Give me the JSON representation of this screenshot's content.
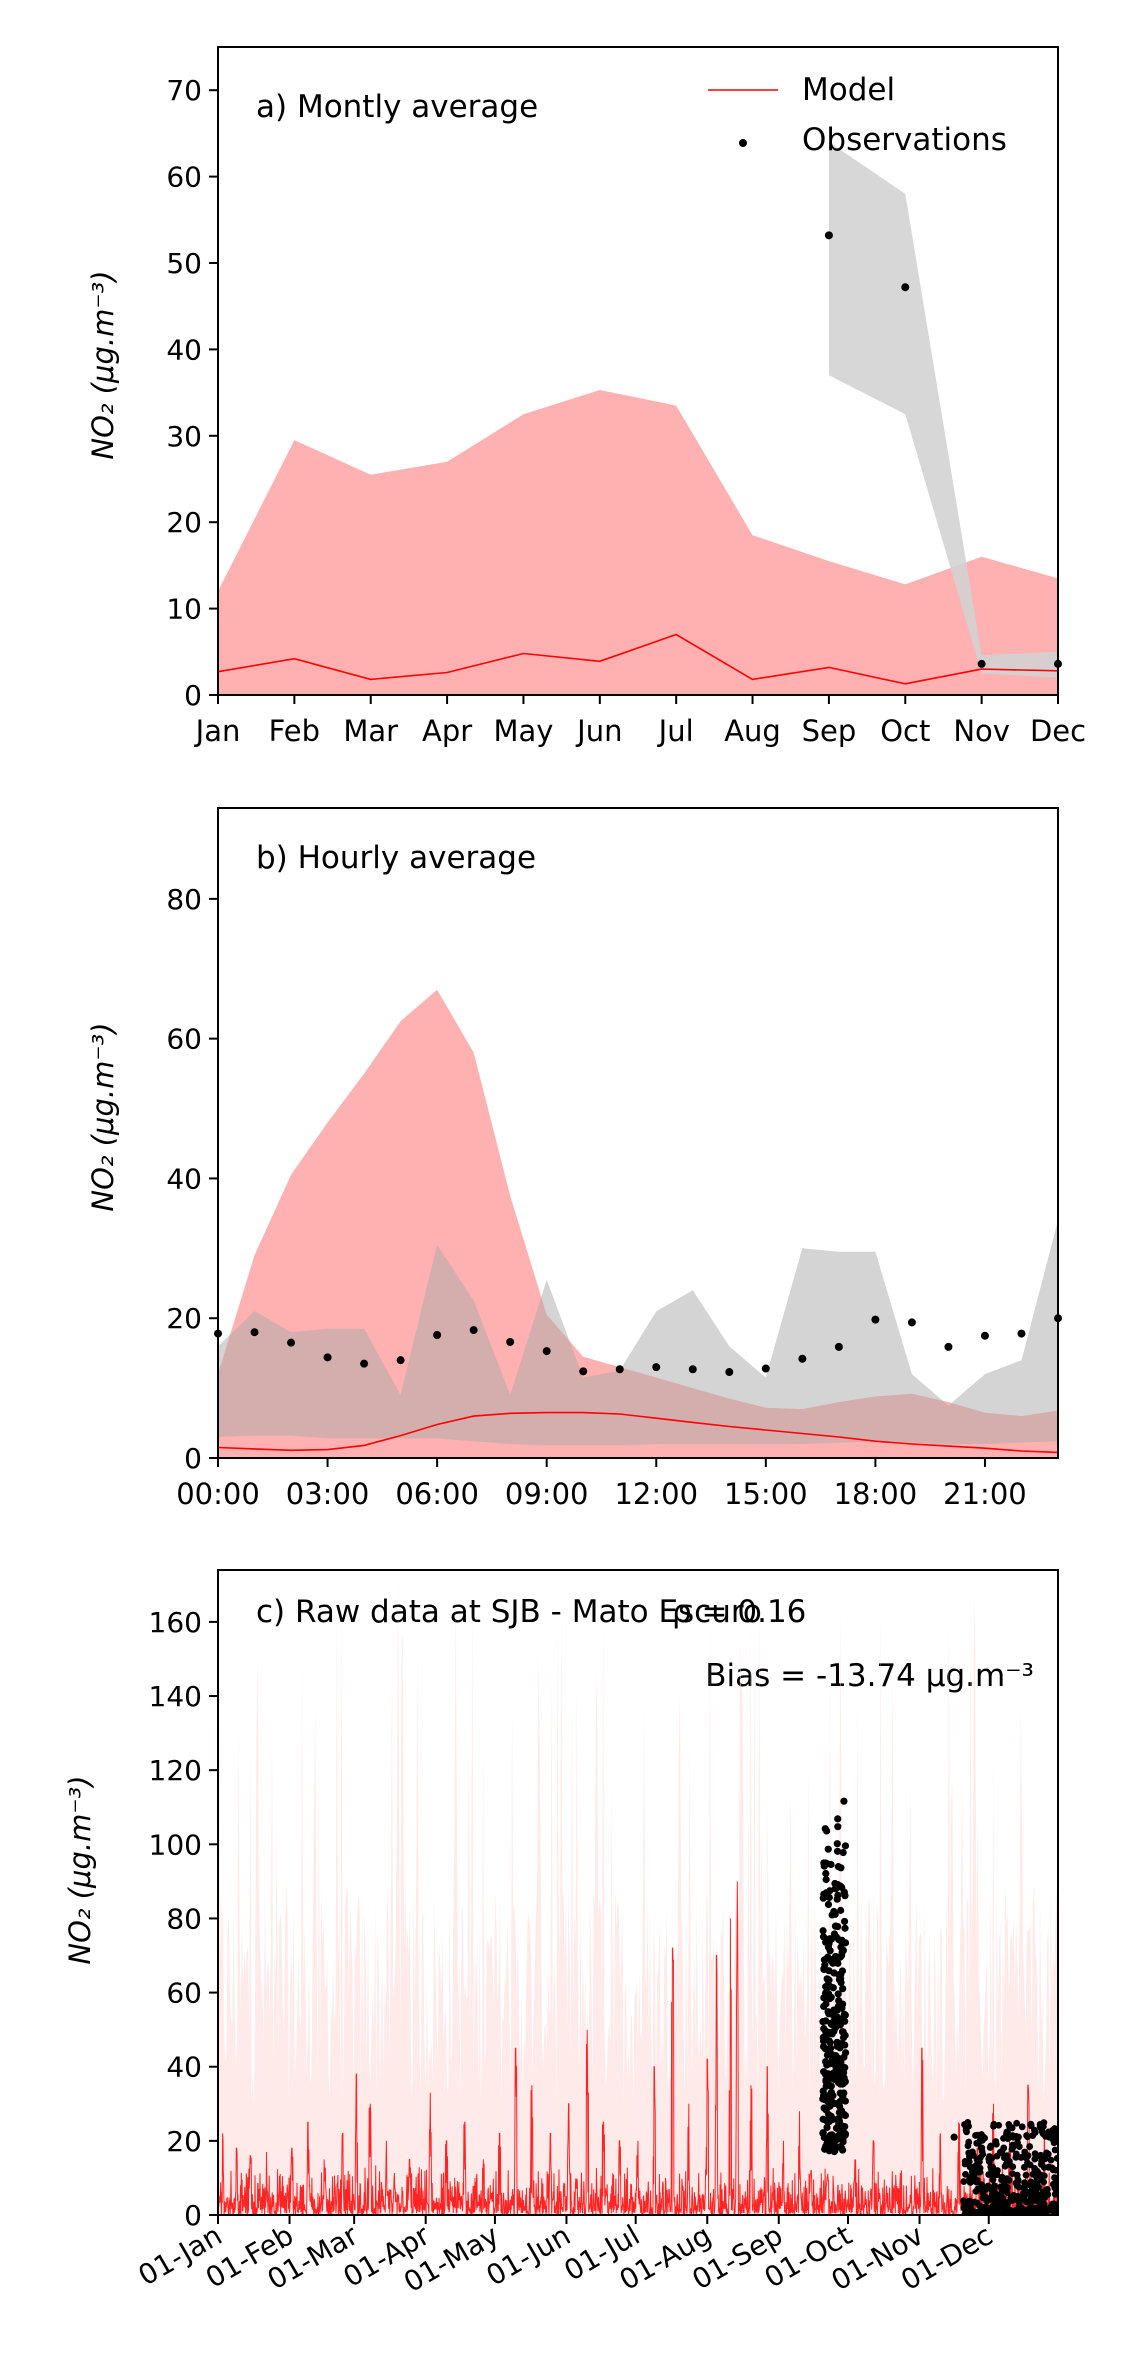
{
  "chart_data": [
    {
      "type": "area",
      "panel_label": "a) Montly average",
      "ylabel": "NO₂ (μg.m⁻³)",
      "ylim": [
        0,
        75
      ],
      "yticks": [
        0,
        10,
        20,
        30,
        40,
        50,
        60,
        70
      ],
      "categories": [
        "Jan",
        "Feb",
        "Mar",
        "Apr",
        "May",
        "Jun",
        "Jul",
        "Aug",
        "Sep",
        "Oct",
        "Nov",
        "Dec"
      ],
      "legend": {
        "position": "top-right",
        "entries": [
          "Model",
          "Observations"
        ]
      },
      "model": {
        "name": "Model",
        "color": "#ff0000",
        "band_color": "#ffb0b0",
        "line": [
          2.7,
          4.2,
          1.8,
          2.6,
          4.8,
          3.9,
          7.0,
          1.8,
          3.2,
          1.3,
          3.0,
          2.8
        ],
        "band_lower": [
          0,
          0,
          0,
          0,
          0,
          0,
          0,
          0,
          0,
          0,
          0,
          0
        ],
        "band_upper": [
          12.0,
          29.5,
          25.5,
          27.0,
          32.5,
          35.3,
          33.5,
          18.5,
          15.5,
          12.8,
          16.0,
          13.5
        ]
      },
      "observations": {
        "name": "Observations",
        "color": "#000000",
        "band_color": "#d3d3d3",
        "points": [
          null,
          null,
          null,
          null,
          null,
          null,
          null,
          null,
          53.2,
          47.2,
          3.6,
          3.6
        ],
        "band_lower": [
          null,
          null,
          null,
          null,
          null,
          null,
          null,
          null,
          37.0,
          32.5,
          2.5,
          2.0
        ],
        "band_upper": [
          null,
          null,
          null,
          null,
          null,
          null,
          null,
          null,
          64.0,
          58.0,
          4.6,
          5.0
        ]
      }
    },
    {
      "type": "area",
      "panel_label": "b) Hourly average",
      "ylabel": "NO₂ (μg.m⁻³)",
      "ylim": [
        0,
        93
      ],
      "yticks": [
        0,
        20,
        40,
        60,
        80
      ],
      "xlim": [
        0,
        23
      ],
      "xticks": [
        {
          "x": 0,
          "label": "00:00"
        },
        {
          "x": 3,
          "label": "03:00"
        },
        {
          "x": 6,
          "label": "06:00"
        },
        {
          "x": 9,
          "label": "09:00"
        },
        {
          "x": 12,
          "label": "12:00"
        },
        {
          "x": 15,
          "label": "15:00"
        },
        {
          "x": 18,
          "label": "18:00"
        },
        {
          "x": 21,
          "label": "21:00"
        }
      ],
      "x": [
        0,
        1,
        2,
        3,
        4,
        5,
        6,
        7,
        8,
        9,
        10,
        11,
        12,
        13,
        14,
        15,
        16,
        17,
        18,
        19,
        20,
        21,
        22,
        23
      ],
      "model": {
        "name": "Model",
        "color": "#ff0000",
        "band_color": "#ffb0b0",
        "line": [
          1.5,
          1.3,
          1.1,
          1.2,
          1.8,
          3.2,
          4.8,
          6.0,
          6.4,
          6.5,
          6.5,
          6.3,
          5.7,
          5.1,
          4.5,
          4.0,
          3.5,
          3.0,
          2.4,
          2.0,
          1.7,
          1.4,
          1.0,
          0.8
        ],
        "band_lower": [
          0,
          0,
          0,
          0,
          0,
          0,
          0,
          0,
          0,
          0,
          0,
          0,
          0,
          0,
          0,
          0,
          0,
          0,
          0,
          0,
          0,
          0,
          0,
          0
        ],
        "band_upper": [
          12.0,
          29.0,
          40.5,
          48.0,
          55.0,
          62.5,
          67.0,
          58.0,
          37.5,
          20.5,
          14.5,
          13.0,
          11.5,
          10.0,
          8.5,
          7.2,
          7.0,
          8.0,
          8.8,
          9.2,
          8.0,
          6.5,
          6.0,
          6.8
        ]
      },
      "observations": {
        "name": "Observations",
        "color": "#000000",
        "band_color": "#d3d3d3",
        "points": [
          17.8,
          18.0,
          16.5,
          14.4,
          13.5,
          14.0,
          17.6,
          18.3,
          16.6,
          15.3,
          12.4,
          12.7,
          13.0,
          12.7,
          12.3,
          12.8,
          14.2,
          15.9,
          19.8,
          19.4,
          15.9,
          17.5,
          17.8,
          20.0
        ],
        "band_lower": [
          3.0,
          3.2,
          3.2,
          2.8,
          2.8,
          2.8,
          2.8,
          2.4,
          2.0,
          1.8,
          1.8,
          1.8,
          2.0,
          2.0,
          2.0,
          2.0,
          2.0,
          2.2,
          2.4,
          2.2,
          2.0,
          2.0,
          2.2,
          2.4
        ],
        "band_upper": [
          16.0,
          21.0,
          18.0,
          18.5,
          18.5,
          9.0,
          30.5,
          22.5,
          9.0,
          25.5,
          11.5,
          12.5,
          21.0,
          24.0,
          16.0,
          11.5,
          30.0,
          29.5,
          29.5,
          12.0,
          7.5,
          12.0,
          14.0,
          34.0
        ]
      }
    },
    {
      "type": "line",
      "panel_label": "c) Raw data at SJB - Mato Escuro",
      "rho_label": "ρ = 0.16",
      "bias_label": "Bias = -13.74 μg.m⁻³",
      "ylabel": "NO₂ (μg.m⁻³)",
      "ylim": [
        0,
        174
      ],
      "yticks": [
        0,
        20,
        40,
        60,
        80,
        100,
        120,
        140,
        160
      ],
      "xlim": [
        "2023-01-01",
        "2023-12-31"
      ],
      "xticks": [
        {
          "x": "2023-01-01",
          "label": "01-Jan"
        },
        {
          "x": "2023-02-01",
          "label": "01-Feb"
        },
        {
          "x": "2023-03-01",
          "label": "01-Mar"
        },
        {
          "x": "2023-04-01",
          "label": "01-Apr"
        },
        {
          "x": "2023-05-01",
          "label": "01-May"
        },
        {
          "x": "2023-06-01",
          "label": "01-Jun"
        },
        {
          "x": "2023-07-01",
          "label": "01-Jul"
        },
        {
          "x": "2023-08-01",
          "label": "01-Aug"
        },
        {
          "x": "2023-09-01",
          "label": "01-Sep"
        },
        {
          "x": "2023-10-01",
          "label": "01-Oct"
        },
        {
          "x": "2023-11-01",
          "label": "01-Nov"
        },
        {
          "x": "2023-12-01",
          "label": "01-Dec"
        }
      ],
      "model": {
        "name": "Model",
        "color": "#ff0000",
        "band_color": "#ffd9d9",
        "peak_series": [
          [
            "2023-01-03",
            22
          ],
          [
            "2023-01-09",
            18
          ],
          [
            "2023-01-15",
            16
          ],
          [
            "2023-01-22",
            17
          ],
          [
            "2023-02-02",
            18
          ],
          [
            "2023-02-09",
            25
          ],
          [
            "2023-02-16",
            15
          ],
          [
            "2023-02-24",
            22
          ],
          [
            "2023-03-02",
            38
          ],
          [
            "2023-03-08",
            30
          ],
          [
            "2023-03-15",
            20
          ],
          [
            "2023-03-25",
            15
          ],
          [
            "2023-04-03",
            33
          ],
          [
            "2023-04-10",
            20
          ],
          [
            "2023-04-18",
            25
          ],
          [
            "2023-04-26",
            15
          ],
          [
            "2023-05-03",
            22
          ],
          [
            "2023-05-10",
            45
          ],
          [
            "2023-05-17",
            35
          ],
          [
            "2023-05-25",
            22
          ],
          [
            "2023-06-02",
            30
          ],
          [
            "2023-06-10",
            50
          ],
          [
            "2023-06-17",
            25
          ],
          [
            "2023-06-24",
            20
          ],
          [
            "2023-07-02",
            20
          ],
          [
            "2023-07-09",
            40
          ],
          [
            "2023-07-17",
            72
          ],
          [
            "2023-07-24",
            30
          ],
          [
            "2023-08-01",
            42
          ],
          [
            "2023-08-05",
            70
          ],
          [
            "2023-08-11",
            80
          ],
          [
            "2023-08-14",
            90
          ],
          [
            "2023-08-20",
            35
          ],
          [
            "2023-08-27",
            40
          ],
          [
            "2023-09-03",
            20
          ],
          [
            "2023-09-10",
            28
          ],
          [
            "2023-09-15",
            12
          ],
          [
            "2023-09-22",
            10
          ],
          [
            "2023-10-04",
            15
          ],
          [
            "2023-10-12",
            20
          ],
          [
            "2023-10-21",
            8
          ],
          [
            "2023-11-02",
            45
          ],
          [
            "2023-11-10",
            22
          ],
          [
            "2023-11-18",
            25
          ],
          [
            "2023-11-26",
            18
          ],
          [
            "2023-12-03",
            30
          ],
          [
            "2023-12-10",
            20
          ],
          [
            "2023-12-18",
            35
          ],
          [
            "2023-12-25",
            25
          ]
        ],
        "band_upper_peaks": [
          [
            "2023-01-18",
            172
          ],
          [
            "2023-02-12",
            150
          ],
          [
            "2023-03-20",
            172
          ],
          [
            "2023-04-14",
            172
          ],
          [
            "2023-05-20",
            172
          ],
          [
            "2023-06-14",
            172
          ],
          [
            "2023-07-20",
            165
          ],
          [
            "2023-08-16",
            172
          ],
          [
            "2023-09-06",
            120
          ],
          [
            "2023-10-20",
            110
          ],
          [
            "2023-11-15",
            140
          ],
          [
            "2023-12-15",
            150
          ]
        ]
      },
      "observations": {
        "name": "Observations",
        "color": "#000000",
        "sep_window": [
          "2023-09-20",
          "2023-09-30"
        ],
        "sep_range": [
          17,
          118
        ],
        "nov_point": [
          "2023-11-16",
          21
        ],
        "dec_window": [
          "2023-11-20",
          "2023-12-31"
        ],
        "dec_range": [
          0,
          25
        ]
      }
    }
  ]
}
